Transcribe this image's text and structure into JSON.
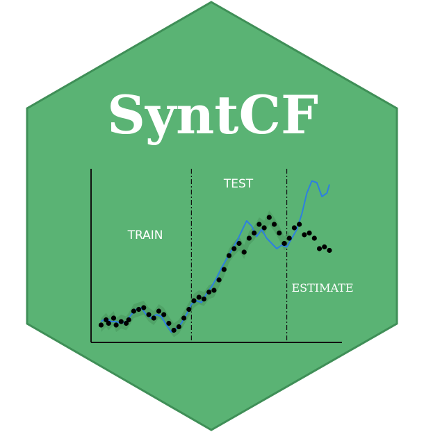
{
  "logo": {
    "title": "SyntCF",
    "colors": {
      "hex_fill": "#5ab374",
      "hex_border": "#3f8f57",
      "title": "#ffffff",
      "axis": "#111111",
      "points": "#000000",
      "line": "#2e7fe0",
      "band": "#4b9c63",
      "labels": "#ffffff"
    }
  },
  "chart_data": {
    "type": "line",
    "title": "",
    "xlabel": "",
    "ylabel": "",
    "sections": [
      "TRAIN",
      "TEST",
      "ESTIMATE"
    ],
    "boundaries": [
      0.4,
      0.78
    ],
    "ylim": [
      0,
      1
    ],
    "observed": [
      [
        0.04,
        0.1
      ],
      [
        0.06,
        0.13
      ],
      [
        0.07,
        0.11
      ],
      [
        0.09,
        0.14
      ],
      [
        0.1,
        0.1
      ],
      [
        0.12,
        0.12
      ],
      [
        0.14,
        0.11
      ],
      [
        0.15,
        0.13
      ],
      [
        0.17,
        0.18
      ],
      [
        0.19,
        0.19
      ],
      [
        0.21,
        0.2
      ],
      [
        0.23,
        0.16
      ],
      [
        0.25,
        0.14
      ],
      [
        0.27,
        0.18
      ],
      [
        0.29,
        0.16
      ],
      [
        0.31,
        0.11
      ],
      [
        0.33,
        0.07
      ],
      [
        0.35,
        0.09
      ],
      [
        0.37,
        0.14
      ],
      [
        0.39,
        0.19
      ],
      [
        0.41,
        0.24
      ],
      [
        0.43,
        0.26
      ],
      [
        0.45,
        0.25
      ],
      [
        0.47,
        0.29
      ],
      [
        0.49,
        0.3
      ],
      [
        0.51,
        0.36
      ],
      [
        0.53,
        0.42
      ],
      [
        0.55,
        0.5
      ],
      [
        0.57,
        0.54
      ],
      [
        0.59,
        0.57
      ],
      [
        0.61,
        0.52
      ],
      [
        0.63,
        0.6
      ],
      [
        0.65,
        0.63
      ],
      [
        0.67,
        0.68
      ],
      [
        0.69,
        0.66
      ],
      [
        0.71,
        0.72
      ],
      [
        0.73,
        0.68
      ],
      [
        0.75,
        0.63
      ],
      [
        0.77,
        0.57
      ],
      [
        0.79,
        0.6
      ],
      [
        0.81,
        0.66
      ],
      [
        0.83,
        0.68
      ],
      [
        0.85,
        0.62
      ],
      [
        0.87,
        0.63
      ],
      [
        0.89,
        0.6
      ],
      [
        0.91,
        0.54
      ],
      [
        0.93,
        0.55
      ],
      [
        0.95,
        0.53
      ]
    ],
    "model": [
      [
        0.04,
        0.12
      ],
      [
        0.06,
        0.14
      ],
      [
        0.08,
        0.12
      ],
      [
        0.1,
        0.12
      ],
      [
        0.12,
        0.11
      ],
      [
        0.14,
        0.12
      ],
      [
        0.16,
        0.16
      ],
      [
        0.18,
        0.19
      ],
      [
        0.2,
        0.2
      ],
      [
        0.22,
        0.16
      ],
      [
        0.24,
        0.14
      ],
      [
        0.26,
        0.16
      ],
      [
        0.28,
        0.15
      ],
      [
        0.3,
        0.1
      ],
      [
        0.32,
        0.06
      ],
      [
        0.34,
        0.08
      ],
      [
        0.36,
        0.11
      ],
      [
        0.38,
        0.16
      ],
      [
        0.4,
        0.22
      ],
      [
        0.42,
        0.24
      ],
      [
        0.44,
        0.23
      ],
      [
        0.46,
        0.28
      ],
      [
        0.48,
        0.32
      ],
      [
        0.5,
        0.37
      ],
      [
        0.52,
        0.43
      ],
      [
        0.54,
        0.48
      ],
      [
        0.56,
        0.53
      ],
      [
        0.58,
        0.58
      ],
      [
        0.6,
        0.64
      ],
      [
        0.62,
        0.7
      ],
      [
        0.64,
        0.67
      ],
      [
        0.66,
        0.61
      ],
      [
        0.68,
        0.65
      ],
      [
        0.7,
        0.6
      ],
      [
        0.72,
        0.57
      ],
      [
        0.74,
        0.54
      ],
      [
        0.76,
        0.56
      ],
      [
        0.78,
        0.55
      ],
      [
        0.8,
        0.6
      ],
      [
        0.82,
        0.65
      ],
      [
        0.84,
        0.74
      ],
      [
        0.86,
        0.86
      ],
      [
        0.88,
        0.93
      ],
      [
        0.9,
        0.92
      ],
      [
        0.92,
        0.84
      ],
      [
        0.94,
        0.86
      ],
      [
        0.95,
        0.91
      ]
    ]
  }
}
